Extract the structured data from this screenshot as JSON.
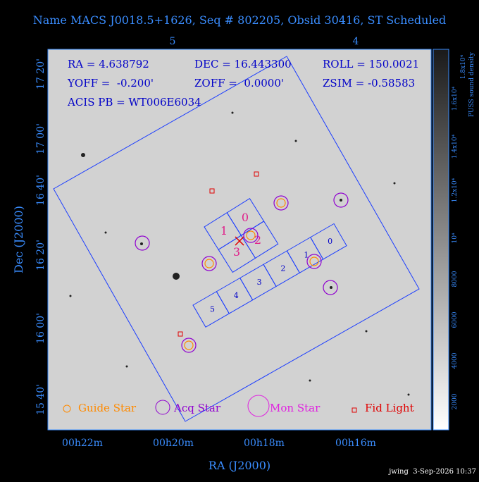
{
  "header": {
    "title": "Name MACS J0018.5+1626, Seq # 802205, Obsid 30416, ST Scheduled"
  },
  "axes": {
    "top_ticks": [
      "5",
      "4"
    ],
    "left_ticks": [
      "17 20'",
      "17 00'",
      "16 40'",
      "16 20'",
      "16 00'",
      "15 40'"
    ],
    "bottom_ticks": [
      "00h22m",
      "00h20m",
      "00h18m",
      "00h16m"
    ],
    "x_label": "RA (J2000)",
    "y_label": "Dec (J2000)"
  },
  "info": {
    "ra": "RA = 4.638792",
    "dec": "DEC = 16.443300",
    "roll": "ROLL = 150.0021",
    "yoff": "YOFF =  -0.200'",
    "zoff": "ZOFF =  0.0000'",
    "zsim": "ZSIM = -0.58583",
    "acis": "ACIS PB = WT006E6034"
  },
  "ccds": {
    "acis_i": [
      "0",
      "1",
      "2",
      "3"
    ],
    "acis_s": [
      "5",
      "4",
      "3",
      "2",
      "1",
      "0"
    ]
  },
  "legend": [
    "Guide Star",
    "Acq Star",
    "Mon Star",
    "Fid Light"
  ],
  "colorbar": {
    "ticks": [
      "2000",
      "4000",
      "6000",
      "8000",
      "10⁴",
      "1.2x10⁴",
      "1.4x10⁴",
      "1.6x10⁴",
      "1.8x10⁴"
    ],
    "label": "PUSS sound density"
  },
  "footer": "jwing  3-Sep-2026 10:37"
}
